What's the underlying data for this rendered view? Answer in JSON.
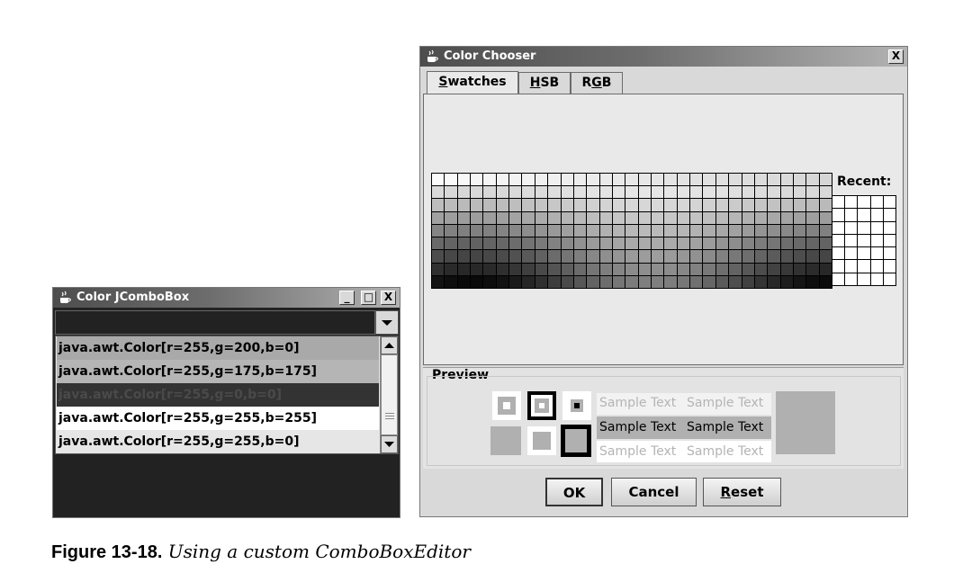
{
  "color_chooser": {
    "title": "Color Chooser",
    "close_glyph": "X",
    "tabs": [
      {
        "label_pre": "",
        "mnemonic": "S",
        "label_post": "watches"
      },
      {
        "label_pre": "",
        "mnemonic": "H",
        "label_post": "SB"
      },
      {
        "label_pre": "R",
        "mnemonic": "G",
        "label_post": "B"
      }
    ],
    "recent_label": "Recent:",
    "preview_label": "Preview",
    "sample_text": "Sample Text",
    "buttons": {
      "ok": "OK",
      "cancel": "Cancel",
      "reset_mnemonic": "R",
      "reset_rest": "eset"
    }
  },
  "combo_window": {
    "title": "Color JComboBox",
    "minimize_glyph": "_",
    "maximize_glyph": "□",
    "close_glyph": "X",
    "list_items": [
      {
        "text": "java.awt.Color[r=255,g=200,b=0]",
        "bg": "#a9a9a9",
        "fg": "#000000"
      },
      {
        "text": "java.awt.Color[r=255,g=175,b=175]",
        "bg": "#b5b5b5",
        "fg": "#000000"
      },
      {
        "text": "java.awt.Color[r=255,g=0,b=0]",
        "bg": "#333333",
        "fg": "#4a4a4a"
      },
      {
        "text": "java.awt.Color[r=255,g=255,b=255]",
        "bg": "#ffffff",
        "fg": "#000000"
      },
      {
        "text": "java.awt.Color[r=255,g=255,b=0]",
        "bg": "#e6e6e6",
        "fg": "#000000"
      }
    ]
  },
  "caption": {
    "figure": "Figure 13-18.",
    "text": "Using a custom ComboBoxEditor"
  }
}
